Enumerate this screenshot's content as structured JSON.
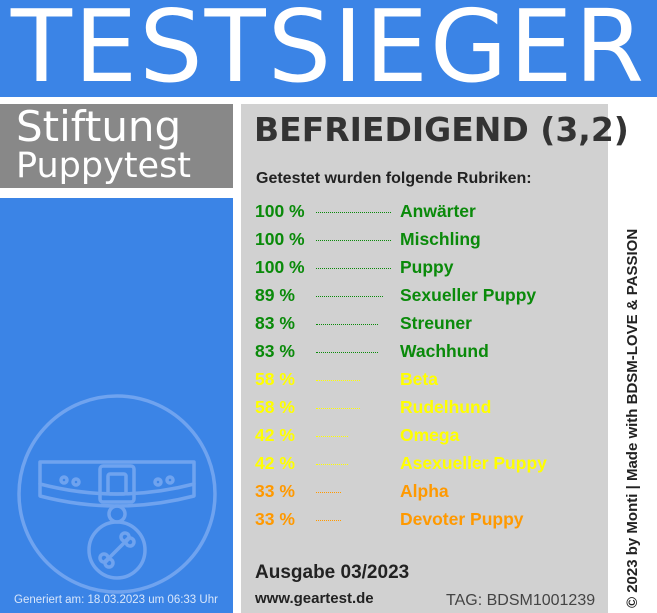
{
  "header": {
    "title": "TESTSIEGER"
  },
  "stiftung": {
    "line1": "Stiftung",
    "line2": "Puppytest"
  },
  "rating": "BEFRIEDIGEND (3,2)",
  "intro": "Getestet wurden folgende Rubriken:",
  "colors": {
    "blue": "#3b84e6",
    "panel_gray": "#d1d1d1",
    "green": "#0a8a0a",
    "yellow": "#ffff00",
    "orange": "#ff9900"
  },
  "rubriken": [
    {
      "pct": "100 %",
      "name": "Anwärter",
      "color": "#0a8a0a",
      "value": 100
    },
    {
      "pct": "100 %",
      "name": "Mischling",
      "color": "#0a8a0a",
      "value": 100
    },
    {
      "pct": "100 %",
      "name": "Puppy",
      "color": "#0a8a0a",
      "value": 100
    },
    {
      "pct": "89 %",
      "name": "Sexueller Puppy",
      "color": "#0a8a0a",
      "value": 89
    },
    {
      "pct": "83 %",
      "name": "Streuner",
      "color": "#0a8a0a",
      "value": 83
    },
    {
      "pct": "83 %",
      "name": "Wachhund",
      "color": "#0a8a0a",
      "value": 83
    },
    {
      "pct": "58 %",
      "name": "Beta",
      "color": "#ffff00",
      "value": 58
    },
    {
      "pct": "58 %",
      "name": "Rudelhund",
      "color": "#ffff00",
      "value": 58
    },
    {
      "pct": "42 %",
      "name": "Omega",
      "color": "#ffff00",
      "value": 42
    },
    {
      "pct": "42 %",
      "name": "Asexueller Puppy",
      "color": "#ffff00",
      "value": 42
    },
    {
      "pct": "33 %",
      "name": "Alpha",
      "color": "#ff9900",
      "value": 33
    },
    {
      "pct": "33 %",
      "name": "Devoter Puppy",
      "color": "#ff9900",
      "value": 33
    }
  ],
  "ausgabe": "Ausgabe 03/2023",
  "website": "www.geartest.de",
  "tag": "TAG: BDSM1001239",
  "generated": "Generiert am: 18.03.2023 um 06:33 Uhr",
  "copyright": "© 2023 by Monti | Made with BDSM-LOVE & PASSION",
  "icons": {
    "collar": "dog-collar-icon"
  }
}
